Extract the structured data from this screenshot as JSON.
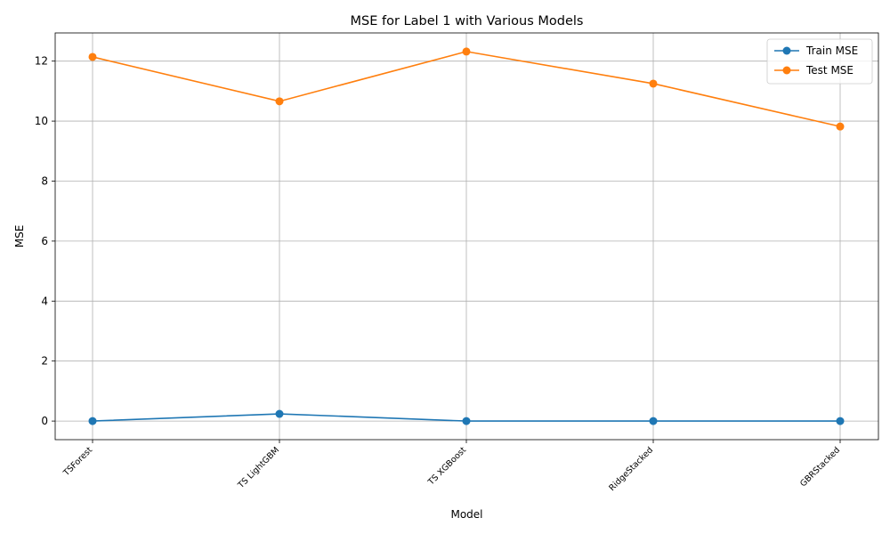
{
  "chart_data": {
    "type": "line",
    "title": "MSE for Label 1 with Various Models",
    "xlabel": "Model",
    "ylabel": "MSE",
    "categories": [
      "TSForest",
      "TS LightGBM",
      "TS XGBoost",
      "RidgeStacked",
      "GBRStacked"
    ],
    "series": [
      {
        "name": "Train MSE",
        "color": "#1f77b4",
        "values": [
          0.0,
          0.24,
          0.0,
          0.0,
          0.0
        ]
      },
      {
        "name": "Test MSE",
        "color": "#ff7f0e",
        "values": [
          12.14,
          10.66,
          12.32,
          11.25,
          9.82
        ]
      }
    ],
    "ylim": [
      -0.62,
      12.94
    ],
    "yticks": [
      0,
      2,
      4,
      6,
      8,
      10,
      12
    ],
    "grid": true,
    "legend_position": "top-right",
    "marker": "circle"
  }
}
